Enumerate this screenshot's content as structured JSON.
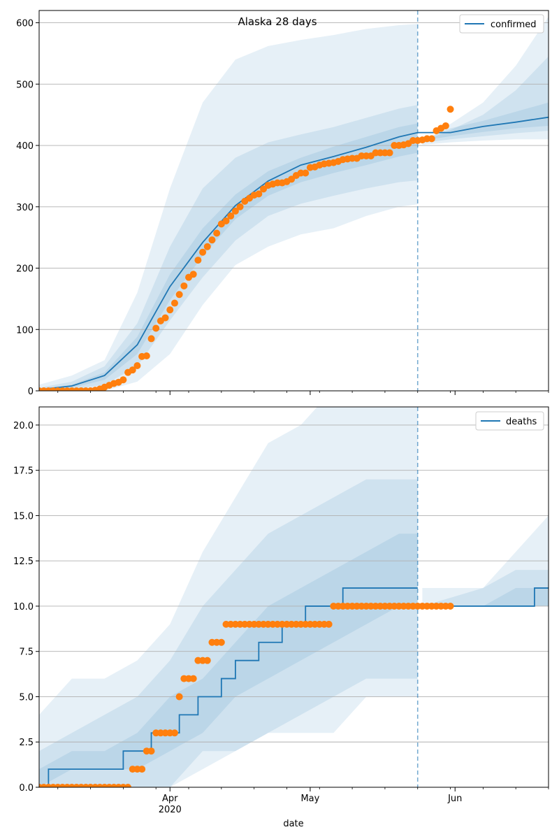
{
  "chart_data": [
    {
      "type": "line",
      "title": "Alaska 28 days",
      "legend": {
        "label": "confirmed",
        "placement": "top-right"
      },
      "ylim": [
        0,
        620
      ],
      "yticks": [
        0,
        100,
        200,
        300,
        400,
        500,
        600
      ],
      "grid": "y",
      "projection_start": "2020-05-24",
      "series": [
        {
          "name": "confirmed",
          "kind": "median-line",
          "x": [
            "2020-03-04",
            "2020-03-11",
            "2020-03-18",
            "2020-03-25",
            "2020-04-01",
            "2020-04-08",
            "2020-04-15",
            "2020-04-22",
            "2020-04-29",
            "2020-05-06",
            "2020-05-13",
            "2020-05-20",
            "2020-05-24",
            "2020-05-31",
            "2020-06-07",
            "2020-06-14",
            "2020-06-21"
          ],
          "y": [
            2,
            8,
            25,
            75,
            170,
            242,
            302,
            342,
            368,
            382,
            397,
            414,
            421,
            421,
            431,
            438,
            446
          ]
        },
        {
          "kind": "observed-points",
          "x": [
            "2020-03-04",
            "2020-03-05",
            "2020-03-06",
            "2020-03-07",
            "2020-03-08",
            "2020-03-09",
            "2020-03-10",
            "2020-03-11",
            "2020-03-12",
            "2020-03-13",
            "2020-03-14",
            "2020-03-15",
            "2020-03-16",
            "2020-03-17",
            "2020-03-18",
            "2020-03-19",
            "2020-03-20",
            "2020-03-21",
            "2020-03-22",
            "2020-03-23",
            "2020-03-24",
            "2020-03-25",
            "2020-03-26",
            "2020-03-27",
            "2020-03-28",
            "2020-03-29",
            "2020-03-30",
            "2020-03-31",
            "2020-04-01",
            "2020-04-02",
            "2020-04-03",
            "2020-04-04",
            "2020-04-05",
            "2020-04-06",
            "2020-04-07",
            "2020-04-08",
            "2020-04-09",
            "2020-04-10",
            "2020-04-11",
            "2020-04-12",
            "2020-04-13",
            "2020-04-14",
            "2020-04-15",
            "2020-04-16",
            "2020-04-17",
            "2020-04-18",
            "2020-04-19",
            "2020-04-20",
            "2020-04-21",
            "2020-04-22",
            "2020-04-23",
            "2020-04-24",
            "2020-04-25",
            "2020-04-26",
            "2020-04-27",
            "2020-04-28",
            "2020-04-29",
            "2020-04-30",
            "2020-05-01",
            "2020-05-02",
            "2020-05-03",
            "2020-05-04",
            "2020-05-05",
            "2020-05-06",
            "2020-05-07",
            "2020-05-08",
            "2020-05-09",
            "2020-05-10",
            "2020-05-11",
            "2020-05-12",
            "2020-05-13",
            "2020-05-14",
            "2020-05-15",
            "2020-05-16",
            "2020-05-17",
            "2020-05-18",
            "2020-05-19",
            "2020-05-20",
            "2020-05-21",
            "2020-05-22",
            "2020-05-23",
            "2020-05-24",
            "2020-05-25",
            "2020-05-26",
            "2020-05-27",
            "2020-05-28",
            "2020-05-29",
            "2020-05-30",
            "2020-05-31"
          ],
          "y": [
            0,
            0,
            0,
            0,
            0,
            0,
            0,
            0,
            0,
            0,
            0,
            0,
            1,
            3,
            6,
            9,
            12,
            14,
            18,
            30,
            34,
            41,
            56,
            57,
            85,
            102,
            114,
            119,
            132,
            143,
            157,
            171,
            185,
            190,
            213,
            226,
            235,
            246,
            257,
            272,
            277,
            285,
            293,
            300,
            309,
            314,
            319,
            321,
            329,
            335,
            337,
            339,
            339,
            341,
            345,
            351,
            355,
            355,
            364,
            365,
            368,
            370,
            371,
            372,
            374,
            377,
            378,
            379,
            379,
            383,
            383,
            383,
            388,
            388,
            388,
            388,
            400,
            400,
            401,
            403,
            408,
            408,
            409,
            411,
            411,
            424,
            428,
            432,
            459
          ]
        }
      ],
      "bands": [
        {
          "level": "outer",
          "x": [
            "2020-03-04",
            "2020-03-11",
            "2020-03-18",
            "2020-03-25",
            "2020-04-01",
            "2020-04-08",
            "2020-04-15",
            "2020-04-22",
            "2020-04-29",
            "2020-05-06",
            "2020-05-13",
            "2020-05-20",
            "2020-05-24",
            "2020-05-25",
            "2020-05-31",
            "2020-06-07",
            "2020-06-14",
            "2020-06-21"
          ],
          "low": [
            0,
            0,
            0,
            15,
            60,
            140,
            205,
            235,
            255,
            265,
            285,
            300,
            304,
            401,
            405,
            408,
            410,
            410
          ],
          "high": [
            10,
            25,
            50,
            160,
            330,
            470,
            540,
            562,
            572,
            580,
            590,
            596,
            598,
            403,
            435,
            470,
            530,
            610
          ]
        },
        {
          "level": "middle",
          "x": [
            "2020-03-04",
            "2020-03-11",
            "2020-03-18",
            "2020-03-25",
            "2020-04-01",
            "2020-04-08",
            "2020-04-15",
            "2020-04-22",
            "2020-04-29",
            "2020-05-06",
            "2020-05-13",
            "2020-05-20",
            "2020-05-24",
            "2020-05-25",
            "2020-05-31",
            "2020-06-07",
            "2020-06-14",
            "2020-06-21"
          ],
          "low": [
            0,
            2,
            10,
            40,
            115,
            185,
            245,
            285,
            305,
            318,
            330,
            340,
            343,
            404,
            410,
            415,
            420,
            424
          ],
          "high": [
            5,
            15,
            40,
            110,
            235,
            330,
            380,
            405,
            418,
            430,
            445,
            460,
            466,
            406,
            425,
            450,
            490,
            545
          ]
        },
        {
          "level": "inner",
          "x": [
            "2020-03-04",
            "2020-03-11",
            "2020-03-18",
            "2020-03-25",
            "2020-04-01",
            "2020-04-08",
            "2020-04-15",
            "2020-04-22",
            "2020-04-29",
            "2020-05-06",
            "2020-05-13",
            "2020-05-20",
            "2020-05-24",
            "2020-05-25",
            "2020-05-31",
            "2020-06-07",
            "2020-06-14",
            "2020-06-21"
          ],
          "low": [
            0,
            5,
            18,
            60,
            148,
            220,
            280,
            318,
            340,
            355,
            368,
            382,
            388,
            408,
            415,
            422,
            428,
            432
          ],
          "high": [
            3,
            10,
            30,
            88,
            190,
            265,
            320,
            358,
            380,
            398,
            414,
            430,
            436,
            409,
            428,
            440,
            455,
            470
          ]
        }
      ]
    },
    {
      "type": "line",
      "legend": {
        "label": "deaths",
        "placement": "top-right"
      },
      "xlabel": "date",
      "ylim": [
        0,
        21
      ],
      "yticks": [
        "0.0",
        "2.5",
        "5.0",
        "7.5",
        "10.0",
        "12.5",
        "15.0",
        "17.5",
        "20.0"
      ],
      "xticks": [
        {
          "date": "2020-04-01",
          "label": "Apr",
          "sublabel": "2020"
        },
        {
          "date": "2020-05-01",
          "label": "May"
        },
        {
          "date": "2020-06-01",
          "label": "Jun"
        }
      ],
      "grid": "y",
      "projection_start": "2020-05-24",
      "series": [
        {
          "name": "deaths",
          "kind": "median-step",
          "x": [
            "2020-03-04",
            "2020-03-06",
            "2020-03-22",
            "2020-03-28",
            "2020-04-03",
            "2020-04-07",
            "2020-04-12",
            "2020-04-15",
            "2020-04-20",
            "2020-04-25",
            "2020-04-30",
            "2020-05-08",
            "2020-05-24",
            "2020-05-25",
            "2020-06-18",
            "2020-06-21"
          ],
          "y": [
            0,
            1,
            2,
            3,
            4,
            5,
            6,
            7,
            8,
            9,
            10,
            11,
            11,
            10,
            11,
            11
          ]
        },
        {
          "kind": "observed-points",
          "x": [
            "2020-03-04",
            "2020-03-05",
            "2020-03-06",
            "2020-03-07",
            "2020-03-08",
            "2020-03-09",
            "2020-03-10",
            "2020-03-11",
            "2020-03-12",
            "2020-03-13",
            "2020-03-14",
            "2020-03-15",
            "2020-03-16",
            "2020-03-17",
            "2020-03-18",
            "2020-03-19",
            "2020-03-20",
            "2020-03-21",
            "2020-03-22",
            "2020-03-23",
            "2020-03-24",
            "2020-03-25",
            "2020-03-26",
            "2020-03-27",
            "2020-03-28",
            "2020-03-29",
            "2020-03-30",
            "2020-03-31",
            "2020-04-01",
            "2020-04-02",
            "2020-04-03",
            "2020-04-04",
            "2020-04-05",
            "2020-04-06",
            "2020-04-07",
            "2020-04-08",
            "2020-04-09",
            "2020-04-10",
            "2020-04-11",
            "2020-04-12",
            "2020-04-13",
            "2020-04-14",
            "2020-04-15",
            "2020-04-16",
            "2020-04-17",
            "2020-04-18",
            "2020-04-19",
            "2020-04-20",
            "2020-04-21",
            "2020-04-22",
            "2020-04-23",
            "2020-04-24",
            "2020-04-25",
            "2020-04-26",
            "2020-04-27",
            "2020-04-28",
            "2020-04-29",
            "2020-04-30",
            "2020-05-01",
            "2020-05-02",
            "2020-05-03",
            "2020-05-04",
            "2020-05-05",
            "2020-05-06",
            "2020-05-07",
            "2020-05-08",
            "2020-05-09",
            "2020-05-10",
            "2020-05-11",
            "2020-05-12",
            "2020-05-13",
            "2020-05-14",
            "2020-05-15",
            "2020-05-16",
            "2020-05-17",
            "2020-05-18",
            "2020-05-19",
            "2020-05-20",
            "2020-05-21",
            "2020-05-22",
            "2020-05-23",
            "2020-05-24",
            "2020-05-25",
            "2020-05-26",
            "2020-05-27",
            "2020-05-28",
            "2020-05-29",
            "2020-05-30",
            "2020-05-31"
          ],
          "y": [
            0,
            0,
            0,
            0,
            0,
            0,
            0,
            0,
            0,
            0,
            0,
            0,
            0,
            0,
            0,
            0,
            0,
            0,
            0,
            0,
            1,
            1,
            1,
            2,
            2,
            3,
            3,
            3,
            3,
            3,
            5,
            6,
            6,
            6,
            7,
            7,
            7,
            8,
            8,
            8,
            9,
            9,
            9,
            9,
            9,
            9,
            9,
            9,
            9,
            9,
            9,
            9,
            9,
            9,
            9,
            9,
            9,
            9,
            9,
            9,
            9,
            9,
            9,
            10,
            10,
            10,
            10,
            10,
            10,
            10,
            10,
            10,
            10,
            10,
            10,
            10,
            10,
            10,
            10,
            10,
            10,
            10,
            10,
            10,
            10,
            10,
            10,
            10,
            10
          ]
        }
      ],
      "bands": [
        {
          "level": "outer",
          "x": [
            "2020-03-04",
            "2020-03-11",
            "2020-03-18",
            "2020-03-25",
            "2020-04-01",
            "2020-04-08",
            "2020-04-15",
            "2020-04-22",
            "2020-04-29",
            "2020-05-06",
            "2020-05-13",
            "2020-05-20",
            "2020-05-24",
            "2020-05-25",
            "2020-06-07",
            "2020-06-14",
            "2020-06-21"
          ],
          "low": [
            0,
            0,
            0,
            0,
            0,
            1,
            2,
            3,
            3,
            3,
            5,
            5,
            5,
            10,
            10,
            10,
            10
          ],
          "high": [
            4,
            6,
            6,
            7,
            9,
            13,
            16,
            19,
            20,
            22,
            24,
            25,
            26,
            11,
            11,
            13,
            15
          ]
        },
        {
          "level": "middle",
          "x": [
            "2020-03-04",
            "2020-03-11",
            "2020-03-18",
            "2020-03-25",
            "2020-04-01",
            "2020-04-08",
            "2020-04-15",
            "2020-04-22",
            "2020-04-29",
            "2020-05-06",
            "2020-05-13",
            "2020-05-20",
            "2020-05-24",
            "2020-05-25",
            "2020-06-07",
            "2020-06-14",
            "2020-06-21"
          ],
          "low": [
            0,
            0,
            0,
            0,
            0,
            2,
            2,
            3,
            4,
            5,
            6,
            6,
            6,
            10,
            10,
            10,
            10
          ],
          "high": [
            2,
            3,
            4,
            5,
            7,
            10,
            12,
            14,
            15,
            16,
            17,
            17,
            17,
            10,
            11,
            12,
            12
          ]
        },
        {
          "level": "inner",
          "x": [
            "2020-03-04",
            "2020-03-11",
            "2020-03-18",
            "2020-03-25",
            "2020-04-01",
            "2020-04-08",
            "2020-04-15",
            "2020-04-22",
            "2020-04-29",
            "2020-05-06",
            "2020-05-13",
            "2020-05-20",
            "2020-05-24",
            "2020-05-25",
            "2020-06-07",
            "2020-06-14",
            "2020-06-21"
          ],
          "low": [
            0,
            1,
            1,
            1,
            2,
            3,
            5,
            6,
            7,
            8,
            9,
            10,
            10,
            10,
            10,
            10,
            10
          ],
          "high": [
            1,
            2,
            2,
            3,
            5,
            6,
            8,
            10,
            11,
            12,
            13,
            14,
            14,
            10,
            10,
            11,
            11
          ]
        }
      ]
    }
  ],
  "colors": {
    "line": "#1f77b4",
    "points": "#ff7f0e",
    "band": "#1f77b4",
    "grid": "#b0b0b0",
    "divider": "#1f77b4"
  }
}
